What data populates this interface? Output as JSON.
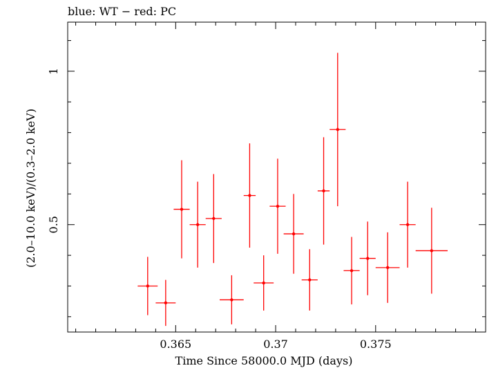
{
  "chart_data": {
    "type": "scatter",
    "title": "blue: WT − red: PC",
    "xlabel": "Time Since 58000.0 MJD (days)",
    "ylabel": "(2.0–10.0 keV)/(0.3–2.0 keV)",
    "xlim": [
      0.3596,
      0.3805
    ],
    "ylim": [
      0.15,
      1.16
    ],
    "x_ticks": [
      {
        "value": 0.365,
        "label": "0.365"
      },
      {
        "value": 0.37,
        "label": "0.37"
      },
      {
        "value": 0.375,
        "label": "0.375"
      }
    ],
    "y_ticks": [
      {
        "value": 0.5,
        "label": "0.5"
      },
      {
        "value": 1.0,
        "label": "1"
      }
    ],
    "grid": false,
    "series": [
      {
        "name": "PC",
        "color": "#ff0000",
        "points": [
          {
            "x": 0.3636,
            "xerr": 0.0005,
            "y": 0.3,
            "yerr_lo": 0.095,
            "yerr_hi": 0.095
          },
          {
            "x": 0.3645,
            "xerr": 0.0005,
            "y": 0.245,
            "yerr_lo": 0.075,
            "yerr_hi": 0.075
          },
          {
            "x": 0.3653,
            "xerr": 0.0004,
            "y": 0.55,
            "yerr_lo": 0.16,
            "yerr_hi": 0.16
          },
          {
            "x": 0.3661,
            "xerr": 0.0004,
            "y": 0.5,
            "yerr_lo": 0.14,
            "yerr_hi": 0.14
          },
          {
            "x": 0.3669,
            "xerr": 0.0004,
            "y": 0.52,
            "yerr_lo": 0.145,
            "yerr_hi": 0.145
          },
          {
            "x": 0.3678,
            "xerr": 0.0006,
            "y": 0.255,
            "yerr_lo": 0.08,
            "yerr_hi": 0.08
          },
          {
            "x": 0.3687,
            "xerr": 0.0003,
            "y": 0.595,
            "yerr_lo": 0.17,
            "yerr_hi": 0.17
          },
          {
            "x": 0.3694,
            "xerr": 0.0005,
            "y": 0.31,
            "yerr_lo": 0.09,
            "yerr_hi": 0.09
          },
          {
            "x": 0.3701,
            "xerr": 0.0004,
            "y": 0.56,
            "yerr_lo": 0.155,
            "yerr_hi": 0.155
          },
          {
            "x": 0.3709,
            "xerr": 0.0005,
            "y": 0.47,
            "yerr_lo": 0.13,
            "yerr_hi": 0.13
          },
          {
            "x": 0.3717,
            "xerr": 0.0004,
            "y": 0.32,
            "yerr_lo": 0.1,
            "yerr_hi": 0.1
          },
          {
            "x": 0.3724,
            "xerr": 0.0003,
            "y": 0.61,
            "yerr_lo": 0.175,
            "yerr_hi": 0.175
          },
          {
            "x": 0.3731,
            "xerr": 0.0004,
            "y": 0.81,
            "yerr_lo": 0.25,
            "yerr_hi": 0.25
          },
          {
            "x": 0.3738,
            "xerr": 0.0004,
            "y": 0.35,
            "yerr_lo": 0.11,
            "yerr_hi": 0.11
          },
          {
            "x": 0.3746,
            "xerr": 0.0004,
            "y": 0.39,
            "yerr_lo": 0.12,
            "yerr_hi": 0.12
          },
          {
            "x": 0.3756,
            "xerr": 0.0006,
            "y": 0.36,
            "yerr_lo": 0.115,
            "yerr_hi": 0.115
          },
          {
            "x": 0.3766,
            "xerr": 0.0004,
            "y": 0.5,
            "yerr_lo": 0.14,
            "yerr_hi": 0.14
          },
          {
            "x": 0.3778,
            "xerr": 0.0008,
            "y": 0.415,
            "yerr_lo": 0.14,
            "yerr_hi": 0.14
          }
        ]
      }
    ]
  }
}
